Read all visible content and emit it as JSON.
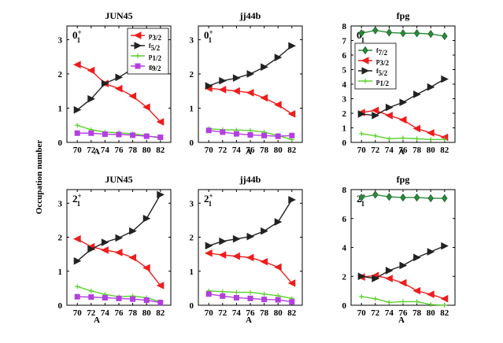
{
  "figure": {
    "ylabel": "Occupation number",
    "xlabel": "A"
  },
  "chart_data": [
    {
      "type": "line",
      "title": "JUN45",
      "state": "0",
      "state_sup": "+",
      "state_sub": "1",
      "xlabel": "A",
      "ylabel": "Occupation number",
      "x": [
        70,
        72,
        74,
        76,
        78,
        80,
        82
      ],
      "xlim": [
        68.5,
        83.5
      ],
      "ylim": [
        0,
        3.4
      ],
      "yticks": [
        0,
        1,
        2,
        3
      ],
      "legend": "top-right",
      "series": [
        {
          "name": "p",
          "sub": "3/2",
          "color": "#ee1d1d",
          "marker": "tri-left",
          "values": [
            2.27,
            2.1,
            1.72,
            1.57,
            1.35,
            1.03,
            0.6
          ]
        },
        {
          "name": "f",
          "sub": "5/2",
          "color": "#222222",
          "marker": "tri-right",
          "values": [
            0.95,
            1.27,
            1.72,
            1.9,
            2.15,
            2.62,
            3.15
          ]
        },
        {
          "name": "p",
          "sub": "1/2",
          "color": "#5ad02c",
          "marker": "plus",
          "values": [
            0.5,
            0.37,
            0.3,
            0.28,
            0.25,
            0.2,
            0.12
          ]
        },
        {
          "name": "g",
          "sub": "9/2",
          "color": "#b33fe0",
          "marker": "square",
          "values": [
            0.27,
            0.27,
            0.24,
            0.23,
            0.21,
            0.18,
            0.15
          ]
        }
      ]
    },
    {
      "type": "line",
      "title": "jj44b",
      "state": "0",
      "state_sup": "+",
      "state_sub": "1",
      "xlabel": "A",
      "ylabel": "Occupation number",
      "x": [
        70,
        72,
        74,
        76,
        78,
        80,
        82
      ],
      "xlim": [
        68.5,
        83.5
      ],
      "ylim": [
        0,
        3.4
      ],
      "yticks": [
        0,
        1,
        2,
        3
      ],
      "legend": "",
      "series": [
        {
          "name": "p",
          "sub": "3/2",
          "color": "#ee1d1d",
          "marker": "tri-left",
          "values": [
            1.58,
            1.54,
            1.5,
            1.45,
            1.3,
            1.1,
            0.83
          ]
        },
        {
          "name": "f",
          "sub": "5/2",
          "color": "#222222",
          "marker": "tri-right",
          "values": [
            1.65,
            1.8,
            1.88,
            2.0,
            2.2,
            2.48,
            2.82
          ]
        },
        {
          "name": "p",
          "sub": "1/2",
          "color": "#5ad02c",
          "marker": "plus",
          "values": [
            0.4,
            0.37,
            0.36,
            0.35,
            0.3,
            0.2,
            0.08
          ]
        },
        {
          "name": "g",
          "sub": "9/2",
          "color": "#b33fe0",
          "marker": "square",
          "values": [
            0.35,
            0.3,
            0.25,
            0.22,
            0.2,
            0.18,
            0.2
          ]
        }
      ]
    },
    {
      "type": "line",
      "title": "fpg",
      "state": "0",
      "state_sup": "+",
      "state_sub": "1",
      "xlabel": "A",
      "ylabel": "Occupation number",
      "x": [
        70,
        72,
        74,
        76,
        78,
        80,
        82
      ],
      "xlim": [
        68.5,
        83.5
      ],
      "ylim": [
        0,
        8
      ],
      "yticks": [
        0,
        1,
        2,
        3,
        4,
        5,
        6,
        7,
        8
      ],
      "legend": "top-left",
      "series": [
        {
          "name": "f",
          "sub": "7/2",
          "color": "#2a8a3a",
          "marker": "diamond",
          "values": [
            7.5,
            7.7,
            7.55,
            7.5,
            7.5,
            7.45,
            7.3
          ]
        },
        {
          "name": "p",
          "sub": "3/2",
          "color": "#ee1d1d",
          "marker": "tri-left",
          "values": [
            2.05,
            2.2,
            1.85,
            1.55,
            0.95,
            0.65,
            0.35
          ]
        },
        {
          "name": "f",
          "sub": "5/2",
          "color": "#222222",
          "marker": "tri-right",
          "values": [
            1.95,
            1.85,
            2.4,
            2.75,
            3.3,
            3.8,
            4.35
          ]
        },
        {
          "name": "p",
          "sub": "1/2",
          "color": "#5ad02c",
          "marker": "plus",
          "values": [
            0.6,
            0.45,
            0.25,
            0.3,
            0.25,
            0.2,
            0.2
          ]
        }
      ]
    },
    {
      "type": "line",
      "title": "JUN45",
      "state": "2",
      "state_sup": "+",
      "state_sub": "1",
      "xlabel": "A",
      "ylabel": "Occupation number",
      "x": [
        70,
        72,
        74,
        76,
        78,
        80,
        82
      ],
      "xlim": [
        68.5,
        83.5
      ],
      "ylim": [
        0,
        3.4
      ],
      "yticks": [
        0,
        1,
        2,
        3
      ],
      "legend": "",
      "series": [
        {
          "name": "p",
          "sub": "3/2",
          "color": "#ee1d1d",
          "marker": "tri-left",
          "values": [
            1.95,
            1.72,
            1.62,
            1.55,
            1.4,
            1.1,
            0.58
          ]
        },
        {
          "name": "f",
          "sub": "5/2",
          "color": "#222222",
          "marker": "tri-right",
          "values": [
            1.3,
            1.65,
            1.85,
            1.98,
            2.18,
            2.55,
            3.25
          ]
        },
        {
          "name": "p",
          "sub": "1/2",
          "color": "#5ad02c",
          "marker": "plus",
          "values": [
            0.55,
            0.42,
            0.32,
            0.25,
            0.27,
            0.22,
            0.1
          ]
        },
        {
          "name": "g",
          "sub": "9/2",
          "color": "#b33fe0",
          "marker": "square",
          "values": [
            0.25,
            0.24,
            0.22,
            0.2,
            0.18,
            0.15,
            0.08
          ]
        }
      ]
    },
    {
      "type": "line",
      "title": "jj44b",
      "state": "2",
      "state_sup": "+",
      "state_sub": "1",
      "xlabel": "A",
      "ylabel": "Occupation number",
      "x": [
        70,
        72,
        74,
        76,
        78,
        80,
        82
      ],
      "xlim": [
        68.5,
        83.5
      ],
      "ylim": [
        0,
        3.4
      ],
      "yticks": [
        0,
        1,
        2,
        3
      ],
      "legend": "",
      "series": [
        {
          "name": "p",
          "sub": "3/2",
          "color": "#ee1d1d",
          "marker": "tri-left",
          "values": [
            1.53,
            1.48,
            1.44,
            1.4,
            1.28,
            1.12,
            0.65
          ]
        },
        {
          "name": "f",
          "sub": "5/2",
          "color": "#222222",
          "marker": "tri-right",
          "values": [
            1.75,
            1.88,
            1.95,
            2.02,
            2.18,
            2.45,
            3.1
          ]
        },
        {
          "name": "p",
          "sub": "1/2",
          "color": "#5ad02c",
          "marker": "plus",
          "values": [
            0.42,
            0.4,
            0.38,
            0.38,
            0.33,
            0.28,
            0.2
          ]
        },
        {
          "name": "g",
          "sub": "9/2",
          "color": "#b33fe0",
          "marker": "square",
          "values": [
            0.33,
            0.27,
            0.22,
            0.2,
            0.17,
            0.16,
            0.1
          ]
        }
      ]
    },
    {
      "type": "line",
      "title": "fpg",
      "state": "2",
      "state_sup": "+",
      "state_sub": "1",
      "xlabel": "A",
      "ylabel": "Occupation number",
      "x": [
        70,
        72,
        74,
        76,
        78,
        80,
        82
      ],
      "xlim": [
        68.5,
        83.5
      ],
      "ylim": [
        0,
        8
      ],
      "yticks": [
        0,
        2,
        4,
        6,
        8
      ],
      "legend": "",
      "series": [
        {
          "name": "f",
          "sub": "7/2",
          "color": "#2a8a3a",
          "marker": "diamond",
          "values": [
            7.45,
            7.65,
            7.5,
            7.45,
            7.45,
            7.4,
            7.4
          ]
        },
        {
          "name": "p",
          "sub": "3/2",
          "color": "#ee1d1d",
          "marker": "tri-left",
          "values": [
            1.95,
            2.05,
            1.85,
            1.55,
            1.0,
            0.75,
            0.45
          ]
        },
        {
          "name": "f",
          "sub": "5/2",
          "color": "#222222",
          "marker": "tri-right",
          "values": [
            2.0,
            1.85,
            2.4,
            2.75,
            3.3,
            3.7,
            4.1
          ]
        },
        {
          "name": "p",
          "sub": "1/2",
          "color": "#5ad02c",
          "marker": "plus",
          "values": [
            0.6,
            0.45,
            0.2,
            0.25,
            0.25,
            0.05,
            0.0
          ]
        }
      ]
    }
  ]
}
